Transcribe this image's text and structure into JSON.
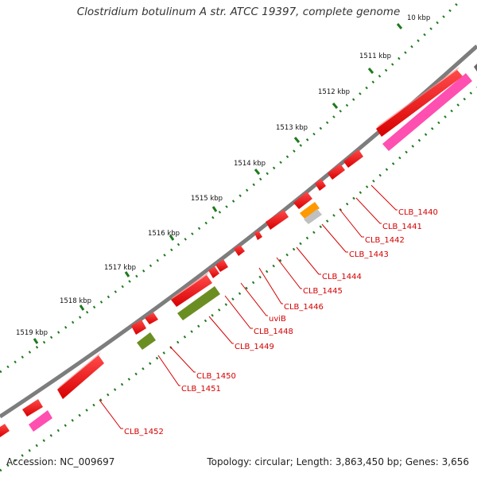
{
  "title": "Clostridium botulinum A str. ATCC 19397, complete genome",
  "footer": {
    "accession": "Accession: NC_009697",
    "topology": "Topology: circular; Length: 3,863,450 bp; Genes: 3,656"
  },
  "ruler_labels": [
    "10 kbp",
    "1511 kbp",
    "1512 kbp",
    "1513 kbp",
    "1514 kbp",
    "1515 kbp",
    "1516 kbp",
    "1517 kbp",
    "1518 kbp",
    "1519 kbp"
  ],
  "gene_labels": [
    "CLB_1440",
    "CLB_1441",
    "CLB_1442",
    "CLB_1443",
    "CLB_1444",
    "CLB_1445",
    "CLB_1446",
    "uviB",
    "CLB_1448",
    "CLB_1449",
    "CLB_1450",
    "CLB_1451",
    "CLB_1452"
  ],
  "colors": {
    "cds": "#ff1a1a",
    "rrna_pink": "#ff4fb0",
    "trna_orange": "#ff9900",
    "misc_green": "#6b8e23",
    "backbone": "#7d7d7d",
    "tick_green": "#1e7a1e",
    "label_red": "#d40000"
  }
}
